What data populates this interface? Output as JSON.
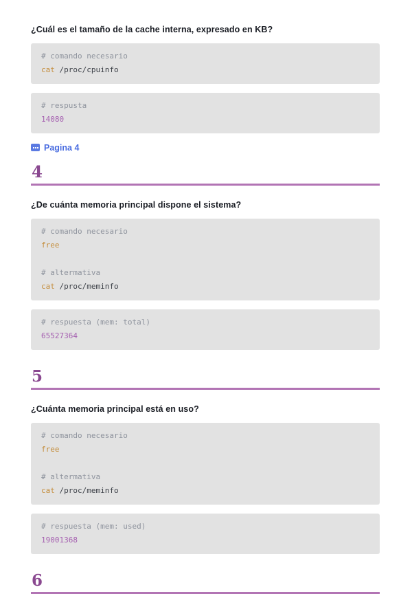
{
  "colors": {
    "heading_text": "#8a4890",
    "heading_rule": "#b274b4",
    "link_blue": "#4a6de0",
    "code_background": "#e2e2e2",
    "code_comment": "#8e939d",
    "code_command": "#c48d3c",
    "code_number": "#a55fb0"
  },
  "sections": {
    "q3": {
      "question": "¿Cuál es el tamaño de la cache interna, expresado en KB?",
      "cmd_block": {
        "comment": "# comando necesario",
        "cmd": "cat",
        "args": " /proc/cpuinfo"
      },
      "ans_block": {
        "comment": "# respusta",
        "value": "14080"
      },
      "link": {
        "icon": "pdf-badge-icon",
        "label": "Pagina 4"
      }
    },
    "h4": {
      "number": "4"
    },
    "q4": {
      "question": "¿De cuánta memoria principal dispone el sistema?",
      "cmd_block": {
        "comment1": "# comando necesario",
        "cmd1": "free",
        "comment2": "# altermativa",
        "cmd2": "cat",
        "args2": " /proc/meminfo"
      },
      "ans_block": {
        "comment": "# respuesta (mem: total)",
        "value": "65527364"
      }
    },
    "h5": {
      "number": "5"
    },
    "q5": {
      "question": "¿Cuánta memoria principal está en uso?",
      "cmd_block": {
        "comment1": "# comando necesario",
        "cmd1": "free",
        "comment2": "# altermativa",
        "cmd2": "cat",
        "args2": " /proc/meminfo"
      },
      "ans_block": {
        "comment": "# respuesta (mem: used)",
        "value": "19001368"
      }
    },
    "h6": {
      "number": "6"
    }
  }
}
